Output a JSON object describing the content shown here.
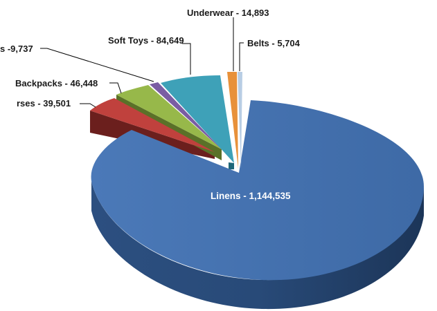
{
  "chart_data": {
    "type": "pie",
    "style": "3d-exploded",
    "title": "",
    "slices": [
      {
        "label": "Linens - 1,144,535",
        "value": 1144535,
        "color": "#4a77b4"
      },
      {
        "label": "Belts - 5,704",
        "value": 5704,
        "color": "#b8cde4"
      },
      {
        "label": "Underwear - 14,893",
        "value": 14893,
        "color": "#e8913a"
      },
      {
        "label": "Soft Toys - 84,649",
        "value": 84649,
        "color": "#3ea1b8"
      },
      {
        "label": "s -9,737",
        "value": 9737,
        "color": "#7a5da3"
      },
      {
        "label": "Backpacks - 46,448",
        "value": 46448,
        "color": "#97b84a"
      },
      {
        "label": "rses - 39,501",
        "value": 39501,
        "color": "#c0413d"
      }
    ]
  }
}
